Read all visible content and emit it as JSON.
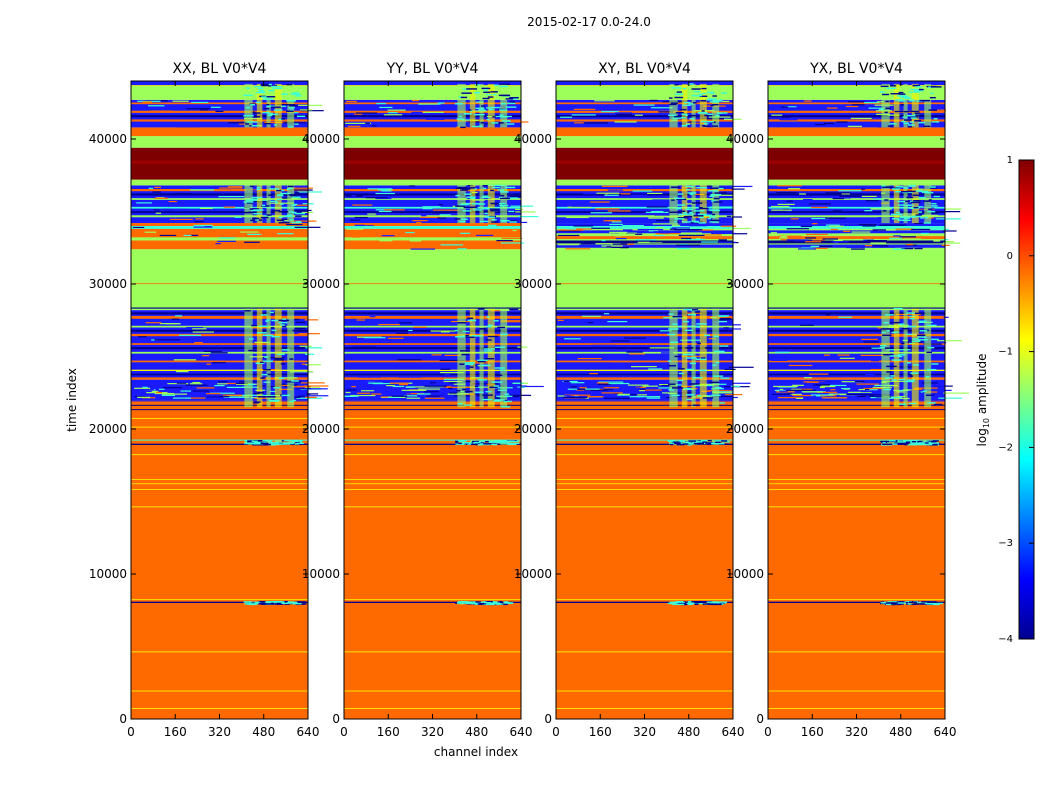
{
  "figure": {
    "suptitle": "2015-02-17 0.0-24.0",
    "xlabel": "channel index",
    "ylabel": "time index"
  },
  "colorbar": {
    "label_prefix": "log",
    "label_sub": "10",
    "label_suffix": " amplitude",
    "range": [
      -4,
      1
    ],
    "ticks": [
      1,
      0,
      -1,
      -2,
      -3,
      -4
    ],
    "colormap": "jet"
  },
  "chart_data": {
    "type": "heatmap",
    "x": {
      "range": [
        0,
        640
      ],
      "ticks": [
        0,
        160,
        320,
        480,
        640
      ]
    },
    "y": {
      "range": [
        0,
        44000
      ],
      "ticks": [
        0,
        10000,
        20000,
        30000,
        40000
      ]
    },
    "panels": [
      {
        "title": "XX, BL V0*V4",
        "pol": "XX"
      },
      {
        "title": "YY, BL V0*V4",
        "pol": "YY"
      },
      {
        "title": "XY, BL V0*V4",
        "pol": "XY"
      },
      {
        "title": "YX, BL V0*V4",
        "pol": "YX"
      }
    ],
    "bands": [
      {
        "t": [
          0,
          19000
        ],
        "log10_amplitude": 0.1,
        "note": "orange, thin yellow lines near t=700, 1900, 4600, 8000, 14600, 15800, 16400, 18200"
      },
      {
        "t": [
          19000,
          22000
        ],
        "log10_amplitude": 0.1,
        "note": "orange with dark blue lines"
      },
      {
        "t": [
          22000,
          23400
        ],
        "log10_amplitude": -3.2,
        "note": "blue, cyan speckle in channels 380-460"
      },
      {
        "t": [
          23400,
          28200
        ],
        "log10_amplitude": -2.5,
        "note": "striped blue / orange / green"
      },
      {
        "t": [
          28200,
          32400
        ],
        "log10_amplitude": -1.2,
        "note": "green"
      },
      {
        "t": [
          32400,
          34200
        ],
        "log10_amplitude": 0.1,
        "note": "orange, green stripes (XX, YY); blue striped (XY, YX)"
      },
      {
        "t": [
          34200,
          36800
        ],
        "log10_amplitude": -3.0,
        "note": "blue / green stripes"
      },
      {
        "t": [
          36800,
          37200
        ],
        "log10_amplitude": -1.2,
        "note": "green"
      },
      {
        "t": [
          37200,
          39400
        ],
        "log10_amplitude": 1.0,
        "note": "dark red"
      },
      {
        "t": [
          39400,
          40200
        ],
        "log10_amplitude": -1.2,
        "note": "green"
      },
      {
        "t": [
          40200,
          40800
        ],
        "log10_amplitude": 0.1,
        "note": "orange"
      },
      {
        "t": [
          40800,
          42700
        ],
        "log10_amplitude": -3.0,
        "note": "blue / orange stripes"
      },
      {
        "t": [
          42700,
          43700
        ],
        "log10_amplitude": -1.2,
        "note": "green"
      },
      {
        "t": [
          43700,
          44000
        ],
        "log10_amplitude": -3.5,
        "note": "dark blue"
      }
    ]
  },
  "colors": {
    "orange": "#ff6a00",
    "green": "#9cff5a",
    "blue": "#1a1aff",
    "darkblue": "#00008f",
    "cyan": "#3affd8",
    "yellow": "#f5f500",
    "darkred": "#7f0000"
  }
}
